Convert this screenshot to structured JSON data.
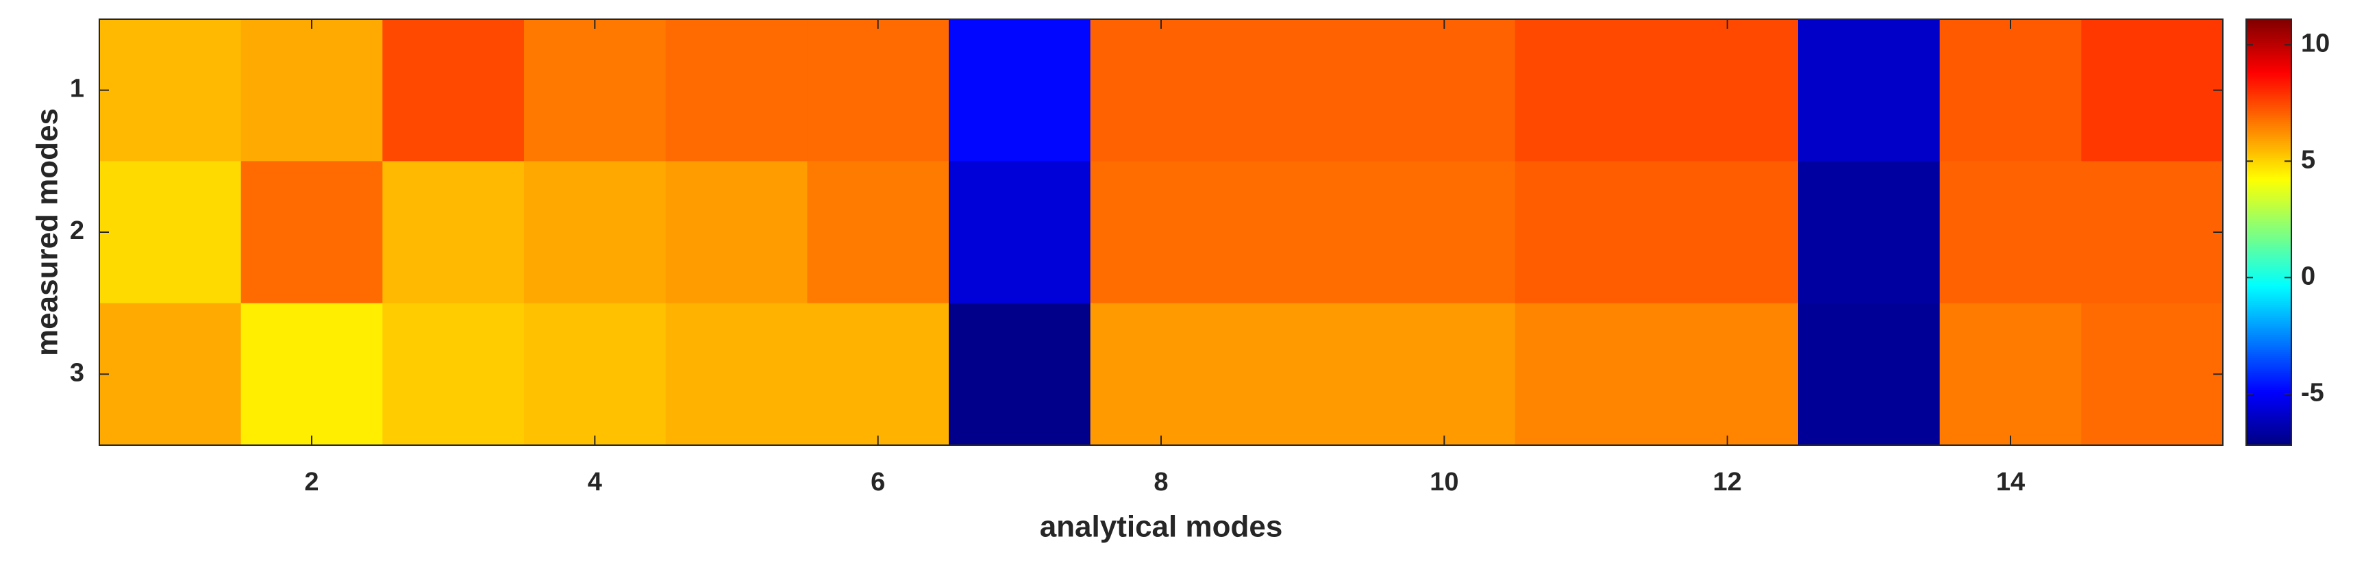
{
  "chart_data": {
    "type": "heatmap",
    "xlabel": "analytical modes",
    "ylabel": "measured modes",
    "xlim": [
      0.5,
      15.5
    ],
    "xticks": [
      2,
      4,
      6,
      8,
      10,
      12,
      14
    ],
    "ylim": [
      0.5,
      3.5
    ],
    "yticks": [
      1,
      2,
      3
    ],
    "y_reversed": true,
    "colormap": "jet",
    "clim": [
      -7.2,
      11.1
    ],
    "cticks": [
      -5,
      0,
      5,
      10
    ],
    "z": [
      [
        5.5,
        5.76,
        7.5,
        6.65,
        6.9,
        6.9,
        -4.8,
        7.05,
        7.05,
        7.05,
        7.5,
        7.5,
        -5.9,
        7.2,
        7.8
      ],
      [
        4.9,
        6.9,
        5.5,
        5.8,
        6.0,
        6.6,
        -5.6,
        6.85,
        6.85,
        6.85,
        7.15,
        7.15,
        -6.6,
        7.05,
        7.05
      ],
      [
        5.76,
        4.55,
        5.15,
        5.35,
        5.6,
        5.6,
        -7.0,
        6.05,
        6.05,
        6.05,
        6.45,
        6.45,
        -6.8,
        6.6,
        6.9
      ]
    ]
  }
}
